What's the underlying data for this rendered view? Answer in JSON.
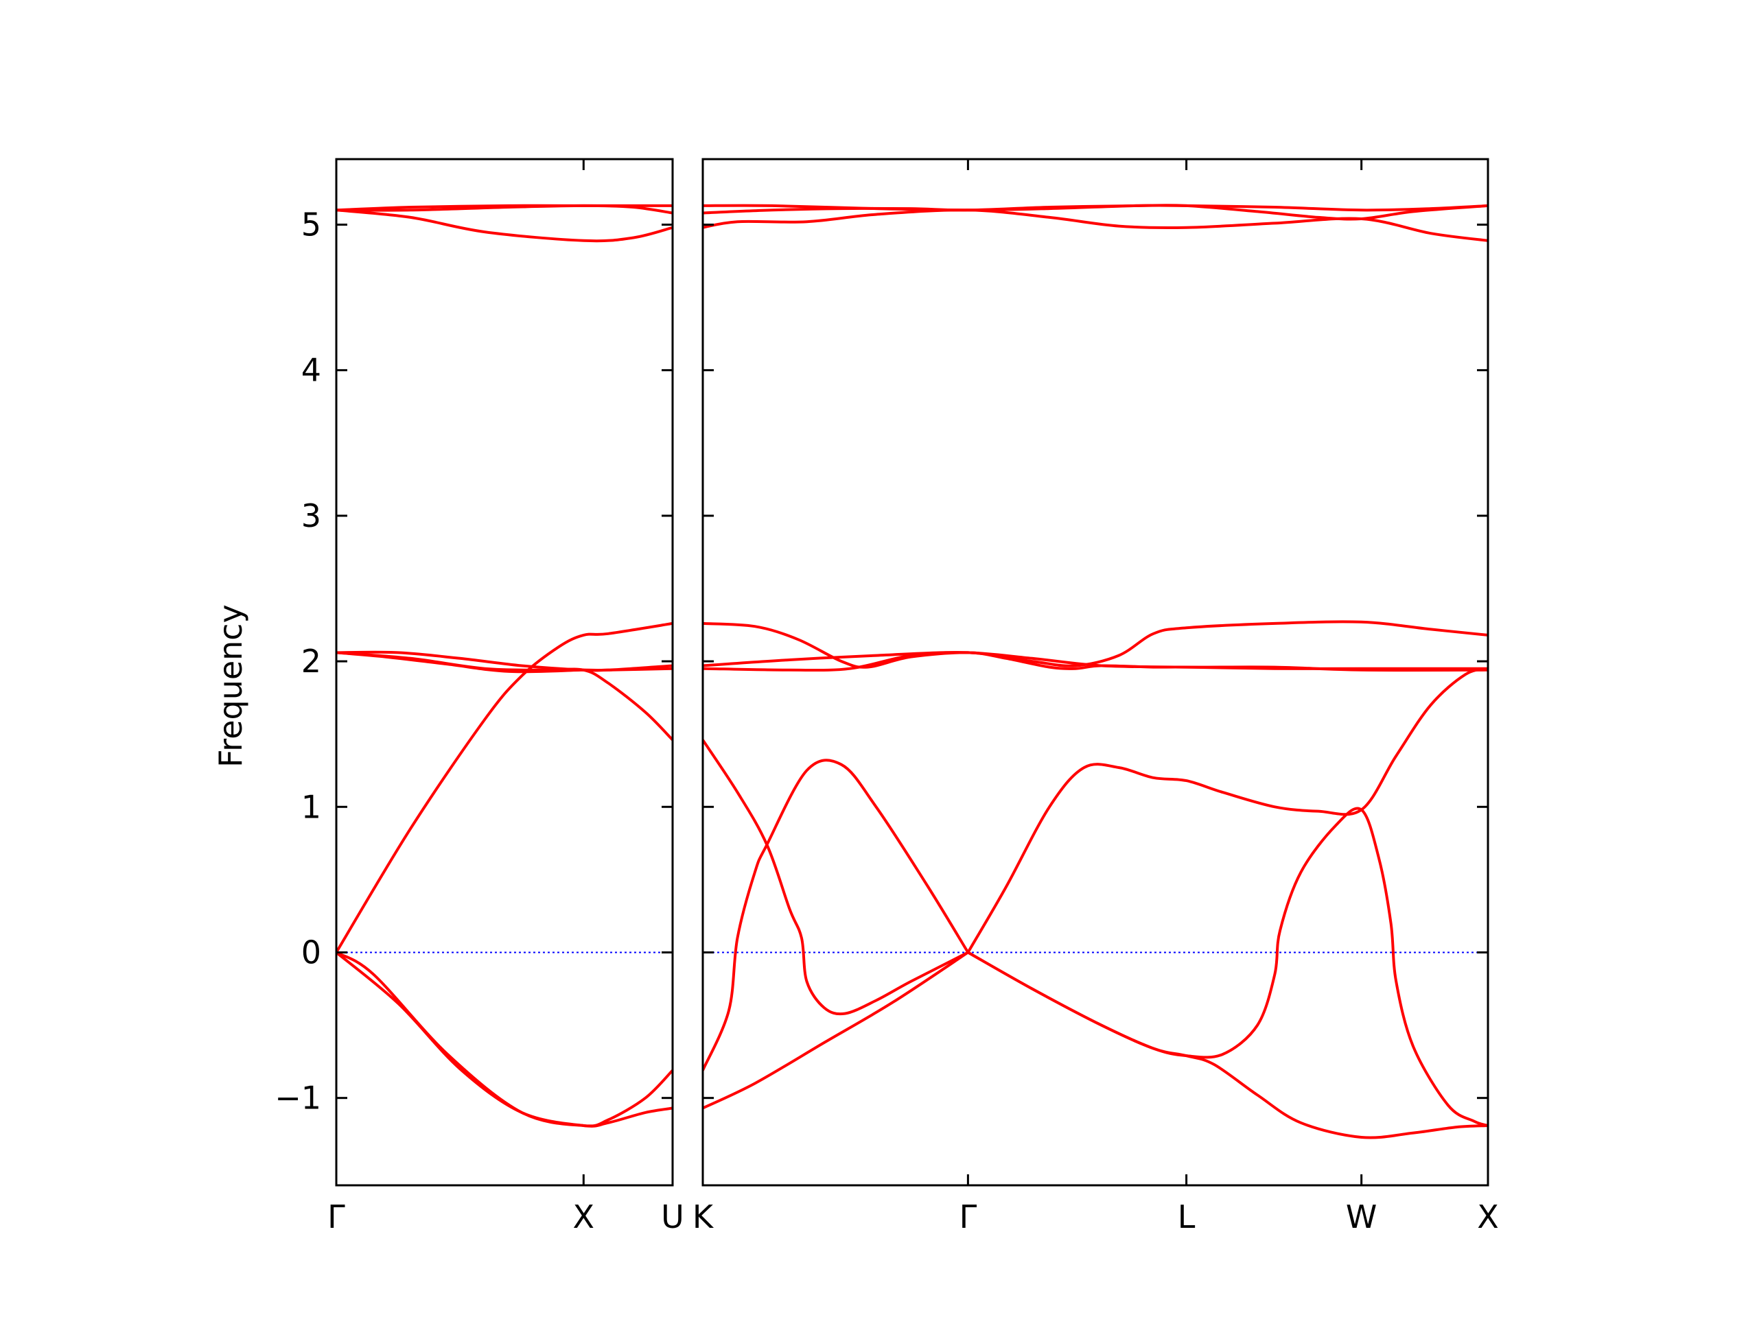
{
  "chart_data": {
    "type": "line",
    "title": "",
    "ylabel": "Frequency",
    "ylim": [
      -1.6,
      5.45
    ],
    "yticks": [
      -1,
      0,
      1,
      2,
      3,
      4,
      5
    ],
    "ytick_labels": [
      "−1",
      "0",
      "1",
      "2",
      "3",
      "4",
      "5"
    ],
    "line_color": "#ff0000",
    "zero_line_color": "#0000ff",
    "grid": false,
    "legend": "none",
    "panels": [
      {
        "name": "Gamma-X-U",
        "xlim": [
          0,
          1.36
        ],
        "xticks": [
          0,
          1.0,
          1.36
        ],
        "xtick_labels": [
          "Γ",
          "X",
          "U"
        ],
        "series": [
          {
            "points": [
              [
                0,
                0
              ],
              [
                0.3,
                0.85
              ],
              [
                0.6,
                1.6
              ],
              [
                0.75,
                1.9
              ],
              [
                0.9,
                2.1
              ],
              [
                1.0,
                2.18
              ],
              [
                1.1,
                2.19
              ],
              [
                1.36,
                2.26
              ]
            ]
          },
          {
            "points": [
              [
                0,
                2.06
              ],
              [
                0.25,
                2.06
              ],
              [
                0.5,
                2.02
              ],
              [
                0.75,
                1.97
              ],
              [
                1.0,
                1.94
              ],
              [
                1.1,
                1.94
              ],
              [
                1.36,
                1.95
              ]
            ]
          },
          {
            "points": [
              [
                0,
                2.06
              ],
              [
                0.2,
                2.03
              ],
              [
                0.45,
                1.98
              ],
              [
                0.7,
                1.93
              ],
              [
                1.0,
                1.94
              ],
              [
                1.1,
                1.94
              ],
              [
                1.36,
                1.97
              ]
            ]
          },
          {
            "points": [
              [
                0,
                2.06
              ],
              [
                0.3,
                2.02
              ],
              [
                0.6,
                1.95
              ],
              [
                0.85,
                1.94
              ],
              [
                1.0,
                1.94
              ],
              [
                1.1,
                1.85
              ],
              [
                1.25,
                1.65
              ],
              [
                1.36,
                1.46
              ]
            ]
          },
          {
            "points": [
              [
                0,
                0
              ],
              [
                0.25,
                -0.35
              ],
              [
                0.5,
                -0.8
              ],
              [
                0.75,
                -1.1
              ],
              [
                1.0,
                -1.19
              ],
              [
                1.1,
                -1.17
              ],
              [
                1.25,
                -1.1
              ],
              [
                1.36,
                -1.07
              ]
            ]
          },
          {
            "points": [
              [
                0,
                0
              ],
              [
                0.15,
                -0.15
              ],
              [
                0.45,
                -0.7
              ],
              [
                0.75,
                -1.1
              ],
              [
                1.0,
                -1.19
              ],
              [
                1.1,
                -1.15
              ],
              [
                1.25,
                -1.0
              ],
              [
                1.36,
                -0.81
              ]
            ]
          },
          {
            "points": [
              [
                0,
                5.1
              ],
              [
                0.3,
                5.12
              ],
              [
                0.7,
                5.13
              ],
              [
                1.0,
                5.13
              ],
              [
                1.2,
                5.13
              ],
              [
                1.36,
                5.13
              ]
            ]
          },
          {
            "points": [
              [
                0,
                5.1
              ],
              [
                0.3,
                5.1
              ],
              [
                0.7,
                5.12
              ],
              [
                1.0,
                5.13
              ],
              [
                1.2,
                5.12
              ],
              [
                1.36,
                5.08
              ]
            ]
          },
          {
            "points": [
              [
                0,
                5.1
              ],
              [
                0.3,
                5.05
              ],
              [
                0.6,
                4.95
              ],
              [
                1.0,
                4.89
              ],
              [
                1.2,
                4.91
              ],
              [
                1.36,
                4.98
              ]
            ]
          }
        ]
      },
      {
        "name": "K-Gamma-L-W-X",
        "xlim": [
          0,
          4.53
        ],
        "xticks": [
          0,
          1.53,
          2.79,
          3.8,
          4.53
        ],
        "xtick_labels": [
          "K",
          "Γ",
          "L",
          "W",
          "X"
        ],
        "series": [
          {
            "points": [
              [
                0,
                1.46
              ],
              [
                0.2,
                1.1
              ],
              [
                0.37,
                0.74
              ],
              [
                0.5,
                0.3
              ],
              [
                0.57,
                0.1
              ],
              [
                0.6,
                -0.2
              ],
              [
                0.7,
                -0.38
              ],
              [
                0.82,
                -0.42
              ],
              [
                1.0,
                -0.33
              ],
              [
                1.2,
                -0.2
              ],
              [
                1.53,
                0
              ]
            ]
          },
          {
            "points": [
              [
                0,
                -0.81
              ],
              [
                0.15,
                -0.4
              ],
              [
                0.2,
                0.1
              ],
              [
                0.3,
                0.55
              ],
              [
                0.37,
                0.74
              ],
              [
                0.6,
                1.25
              ],
              [
                0.8,
                1.29
              ],
              [
                1.0,
                1.0
              ],
              [
                1.3,
                0.45
              ],
              [
                1.53,
                0
              ]
            ]
          },
          {
            "points": [
              [
                0,
                -1.07
              ],
              [
                0.3,
                -0.9
              ],
              [
                0.7,
                -0.62
              ],
              [
                1.1,
                -0.34
              ],
              [
                1.53,
                0
              ]
            ]
          },
          {
            "points": [
              [
                1.53,
                0
              ],
              [
                1.75,
                0.45
              ],
              [
                2.0,
                1.0
              ],
              [
                2.2,
                1.27
              ],
              [
                2.4,
                1.27
              ],
              [
                2.6,
                1.2
              ],
              [
                2.79,
                1.18
              ],
              [
                3.0,
                1.1
              ],
              [
                3.3,
                1.0
              ],
              [
                3.55,
                0.97
              ],
              [
                3.8,
                0.98
              ],
              [
                4.0,
                1.35
              ],
              [
                4.2,
                1.7
              ],
              [
                4.4,
                1.91
              ],
              [
                4.53,
                1.95
              ]
            ]
          },
          {
            "points": [
              [
                1.53,
                0
              ],
              [
                1.9,
                -0.25
              ],
              [
                2.3,
                -0.5
              ],
              [
                2.6,
                -0.66
              ],
              [
                2.79,
                -0.71
              ],
              [
                3.0,
                -0.7
              ],
              [
                3.2,
                -0.5
              ],
              [
                3.3,
                -0.15
              ],
              [
                3.33,
                0.15
              ],
              [
                3.45,
                0.55
              ],
              [
                3.65,
                0.87
              ],
              [
                3.8,
                0.98
              ],
              [
                3.9,
                0.65
              ],
              [
                3.97,
                0.2
              ],
              [
                4.0,
                -0.2
              ],
              [
                4.1,
                -0.65
              ],
              [
                4.3,
                -1.05
              ],
              [
                4.45,
                -1.16
              ],
              [
                4.53,
                -1.19
              ]
            ]
          },
          {
            "points": [
              [
                1.53,
                0
              ],
              [
                1.9,
                -0.25
              ],
              [
                2.3,
                -0.5
              ],
              [
                2.6,
                -0.66
              ],
              [
                2.79,
                -0.71
              ],
              [
                2.95,
                -0.77
              ],
              [
                3.2,
                -0.98
              ],
              [
                3.45,
                -1.17
              ],
              [
                3.8,
                -1.27
              ],
              [
                4.1,
                -1.24
              ],
              [
                4.35,
                -1.2
              ],
              [
                4.53,
                -1.19
              ]
            ]
          },
          {
            "points": [
              [
                0,
                1.95
              ],
              [
                0.5,
                1.94
              ],
              [
                0.85,
                1.95
              ],
              [
                1.2,
                2.04
              ],
              [
                1.53,
                2.06
              ],
              [
                1.9,
                2.02
              ],
              [
                2.3,
                1.97
              ],
              [
                2.79,
                1.96
              ],
              [
                3.3,
                1.96
              ],
              [
                3.8,
                1.94
              ],
              [
                4.53,
                1.94
              ]
            ]
          },
          {
            "points": [
              [
                0,
                1.97
              ],
              [
                0.5,
                2.01
              ],
              [
                1.0,
                2.04
              ],
              [
                1.53,
                2.06
              ],
              [
                1.9,
                2.0
              ],
              [
                2.15,
                1.97
              ],
              [
                2.4,
                2.04
              ],
              [
                2.6,
                2.19
              ],
              [
                2.79,
                2.23
              ],
              [
                3.3,
                2.26
              ],
              [
                3.8,
                2.27
              ],
              [
                4.2,
                2.22
              ],
              [
                4.53,
                2.18
              ]
            ]
          },
          {
            "points": [
              [
                0,
                2.26
              ],
              [
                0.3,
                2.24
              ],
              [
                0.55,
                2.15
              ],
              [
                0.8,
                2.0
              ],
              [
                0.95,
                1.96
              ],
              [
                1.2,
                2.03
              ],
              [
                1.53,
                2.06
              ],
              [
                1.75,
                2.02
              ],
              [
                2.0,
                1.96
              ],
              [
                2.15,
                1.95
              ],
              [
                2.3,
                1.97
              ],
              [
                2.6,
                1.96
              ],
              [
                2.79,
                1.96
              ],
              [
                3.3,
                1.95
              ],
              [
                3.8,
                1.95
              ],
              [
                4.53,
                1.95
              ]
            ]
          },
          {
            "points": [
              [
                0,
                5.13
              ],
              [
                0.4,
                5.13
              ],
              [
                1.0,
                5.11
              ],
              [
                1.53,
                5.1
              ],
              [
                2.0,
                5.11
              ],
              [
                2.5,
                5.13
              ],
              [
                2.79,
                5.13
              ],
              [
                3.3,
                5.12
              ],
              [
                3.8,
                5.1
              ],
              [
                4.2,
                5.11
              ],
              [
                4.53,
                5.13
              ]
            ]
          },
          {
            "points": [
              [
                0,
                5.08
              ],
              [
                0.4,
                5.1
              ],
              [
                0.8,
                5.11
              ],
              [
                1.2,
                5.11
              ],
              [
                1.53,
                5.1
              ],
              [
                2.0,
                5.12
              ],
              [
                2.5,
                5.13
              ],
              [
                2.79,
                5.13
              ],
              [
                3.2,
                5.09
              ],
              [
                3.55,
                5.05
              ],
              [
                3.8,
                5.04
              ],
              [
                4.1,
                5.09
              ],
              [
                4.53,
                5.13
              ]
            ]
          },
          {
            "points": [
              [
                0,
                4.98
              ],
              [
                0.2,
                5.02
              ],
              [
                0.6,
                5.02
              ],
              [
                1.0,
                5.07
              ],
              [
                1.53,
                5.1
              ],
              [
                2.0,
                5.05
              ],
              [
                2.4,
                4.99
              ],
              [
                2.79,
                4.98
              ],
              [
                3.3,
                5.01
              ],
              [
                3.8,
                5.04
              ],
              [
                4.2,
                4.94
              ],
              [
                4.53,
                4.89
              ]
            ]
          }
        ]
      }
    ]
  }
}
